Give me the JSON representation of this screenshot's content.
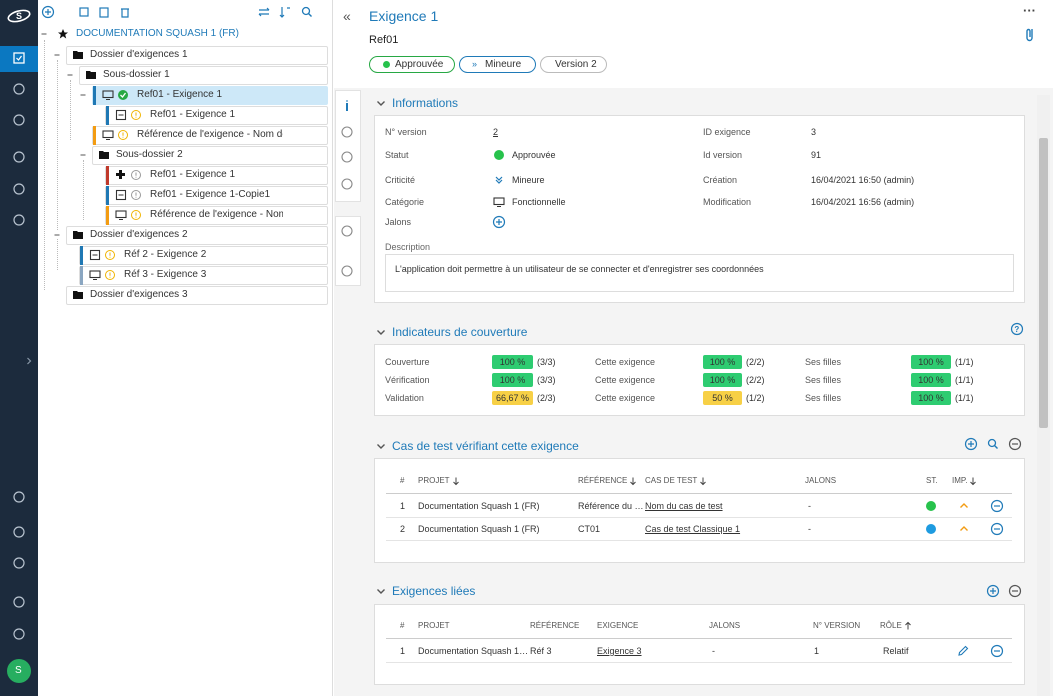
{
  "sidebar": {
    "avatar": "S"
  },
  "tree": {
    "root": "DOCUMENTATION SQUASH 1 (FR)",
    "nodes": [
      {
        "label": "Dossier d'exigences 1"
      },
      {
        "label": "Sous-dossier 1"
      },
      {
        "label": "Ref01 - Exigence 1"
      },
      {
        "label": "Ref01 - Exigence 1"
      },
      {
        "label": "Référence de l'exigence - Nom de l'exigen…"
      },
      {
        "label": "Sous-dossier 2"
      },
      {
        "label": "Ref01 - Exigence 1"
      },
      {
        "label": "Ref01 - Exigence 1-Copie1"
      },
      {
        "label": "Référence de l'exigence - Nom de l'exi…"
      },
      {
        "label": "Dossier d'exigences 2"
      },
      {
        "label": "Réf 2 - Exigence 2"
      },
      {
        "label": "Réf 3 - Exigence 3"
      },
      {
        "label": "Dossier d'exigences 3"
      }
    ]
  },
  "header": {
    "title": "Exigence 1",
    "reference": "Ref01",
    "status": "Approuvée",
    "criticality": "Mineure",
    "version": "Version 2"
  },
  "informations": {
    "title": "Informations",
    "fields": [
      {
        "label": "N° version",
        "value": "2"
      },
      {
        "label": "Statut",
        "value": "Approuvée"
      },
      {
        "label": "Criticité",
        "value": "Mineure"
      },
      {
        "label": "Catégorie",
        "value": "Fonctionnelle"
      },
      {
        "label": "Jalons"
      },
      {
        "label": "ID exigence",
        "value": "3"
      },
      {
        "label": "Id version",
        "value": "91"
      },
      {
        "label": "Création",
        "value": "16/04/2021 16:50 (admin)"
      },
      {
        "label": "Modification",
        "value": "16/04/2021 16:56 (admin)"
      }
    ],
    "description_label": "Description",
    "description": "L'application doit permettre à un utilisateur de se connecter et d'enregistrer ses coordonnées"
  },
  "coverage": {
    "title": "Indicateurs de couverture",
    "rows": [
      {
        "cells": [
          {
            "label": "Couverture",
            "rate": "100 %",
            "count": "(3/3)",
            "color": "#2ecc71"
          },
          {
            "label": "Cette exigence",
            "rate": "100 %",
            "count": "(2/2)",
            "color": "#2ecc71"
          },
          {
            "label": "Ses filles",
            "rate": "100 %",
            "count": "(1/1)",
            "color": "#2ecc71"
          }
        ]
      },
      {
        "cells": [
          {
            "label": "Vérification",
            "rate": "100 %",
            "count": "(3/3)",
            "color": "#2ecc71"
          },
          {
            "label": "Cette exigence",
            "rate": "100 %",
            "count": "(2/2)",
            "color": "#2ecc71"
          },
          {
            "label": "Ses filles",
            "rate": "100 %",
            "count": "(1/1)",
            "color": "#2ecc71"
          }
        ]
      },
      {
        "cells": [
          {
            "label": "Validation",
            "rate": "66,67 %",
            "count": "(2/3)",
            "color": "#f7d046"
          },
          {
            "label": "Cette exigence",
            "rate": "50 %",
            "count": "(1/2)",
            "color": "#f7d046"
          },
          {
            "label": "Ses filles",
            "rate": "100 %",
            "count": "(1/1)",
            "color": "#2ecc71"
          }
        ]
      }
    ]
  },
  "test_cases": {
    "title": "Cas de test vérifiant cette exigence",
    "columns": [
      "#",
      "PROJET",
      "RÉFÉRENCE",
      "CAS DE TEST",
      "JALONS",
      "ST.",
      "IMP."
    ],
    "rows": [
      {
        "index": "1",
        "project": "Documentation Squash 1 (FR)",
        "reference": "Référence du …",
        "name": "Nom du cas de test",
        "milestones": "-",
        "status_color": "#27c24c"
      },
      {
        "index": "2",
        "project": "Documentation Squash 1 (FR)",
        "reference": "CT01",
        "name": "Cas de test Classique 1",
        "milestones": "-",
        "status_color": "#1e9be0"
      }
    ]
  },
  "linked": {
    "title": "Exigences liées",
    "columns": [
      "#",
      "PROJET",
      "RÉFÉRENCE",
      "EXIGENCE",
      "JALONS",
      "N° VERSION",
      "RÔLE"
    ],
    "rows": [
      [
        "1",
        "Documentation Squash 1…",
        "Réf 3",
        "Exigence 3",
        "-",
        "1",
        "Relatif"
      ]
    ]
  }
}
